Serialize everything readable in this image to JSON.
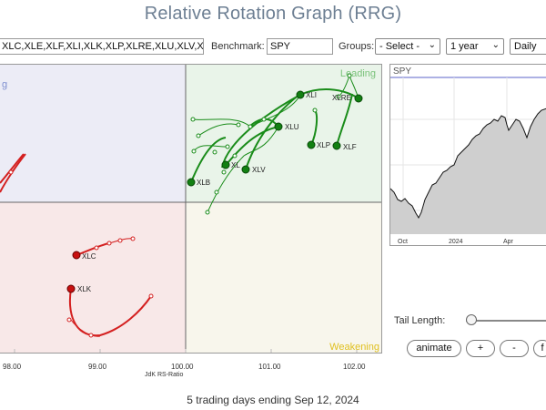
{
  "page_title": "Relative Rotation Graph (RRG)",
  "toolbar": {
    "symbols_value": "XLC,XLE,XLF,XLI,XLK,XLP,XLRE,XLU,XLV,XL",
    "benchmark_label": "Benchmark:",
    "benchmark_value": "SPY",
    "groups_label": "Groups:",
    "groups_value": "- Select -",
    "period_value": "1 year",
    "frequency_value": "Daily"
  },
  "rrg": {
    "quadrants": {
      "leading": "Leading",
      "weakening": "Weakening",
      "improving_partial": "g"
    },
    "x_ticks": [
      "98.00",
      "99.00",
      "100.00",
      "101.00",
      "102.00"
    ],
    "x_axis_label": "JdK RS-Ratio",
    "colors": {
      "leading_tail": "#1a8c1a",
      "lagging_tail": "#d42020"
    },
    "series": [
      {
        "label": "XLRE",
        "quadrant": "leading",
        "ratio": 101.97,
        "momentum": "head"
      },
      {
        "label": "XLI",
        "quadrant": "leading",
        "ratio": 101.4,
        "momentum": "head"
      },
      {
        "label": "XLU",
        "quadrant": "leading",
        "ratio": 101.1,
        "momentum": "head"
      },
      {
        "label": "XLP",
        "quadrant": "leading",
        "ratio": 101.5,
        "momentum": "head"
      },
      {
        "label": "XLF",
        "quadrant": "leading",
        "ratio": 101.8,
        "momentum": "head"
      },
      {
        "label": "XL",
        "quadrant": "leading",
        "ratio": 100.5,
        "momentum": "head"
      },
      {
        "label": "XLV",
        "quadrant": "leading",
        "ratio": 100.75,
        "momentum": "head"
      },
      {
        "label": "XLB",
        "quadrant": "leading",
        "ratio": 100.05,
        "momentum": "head"
      },
      {
        "label": "XLC",
        "quadrant": "lagging",
        "ratio": 98.8,
        "momentum": "head"
      },
      {
        "label": "XLK",
        "quadrant": "lagging",
        "ratio": 98.7,
        "momentum": "head"
      }
    ]
  },
  "spy_chart": {
    "symbol": "SPY",
    "x_labels": [
      "Oct",
      "2024",
      "Apr"
    ]
  },
  "controls": {
    "tail_length_label": "Tail Length:",
    "animate_label": "animate",
    "plus_label": "+",
    "minus_label": "-",
    "extra_label": "f"
  },
  "footer": "5 trading days ending Sep 12, 2024"
}
